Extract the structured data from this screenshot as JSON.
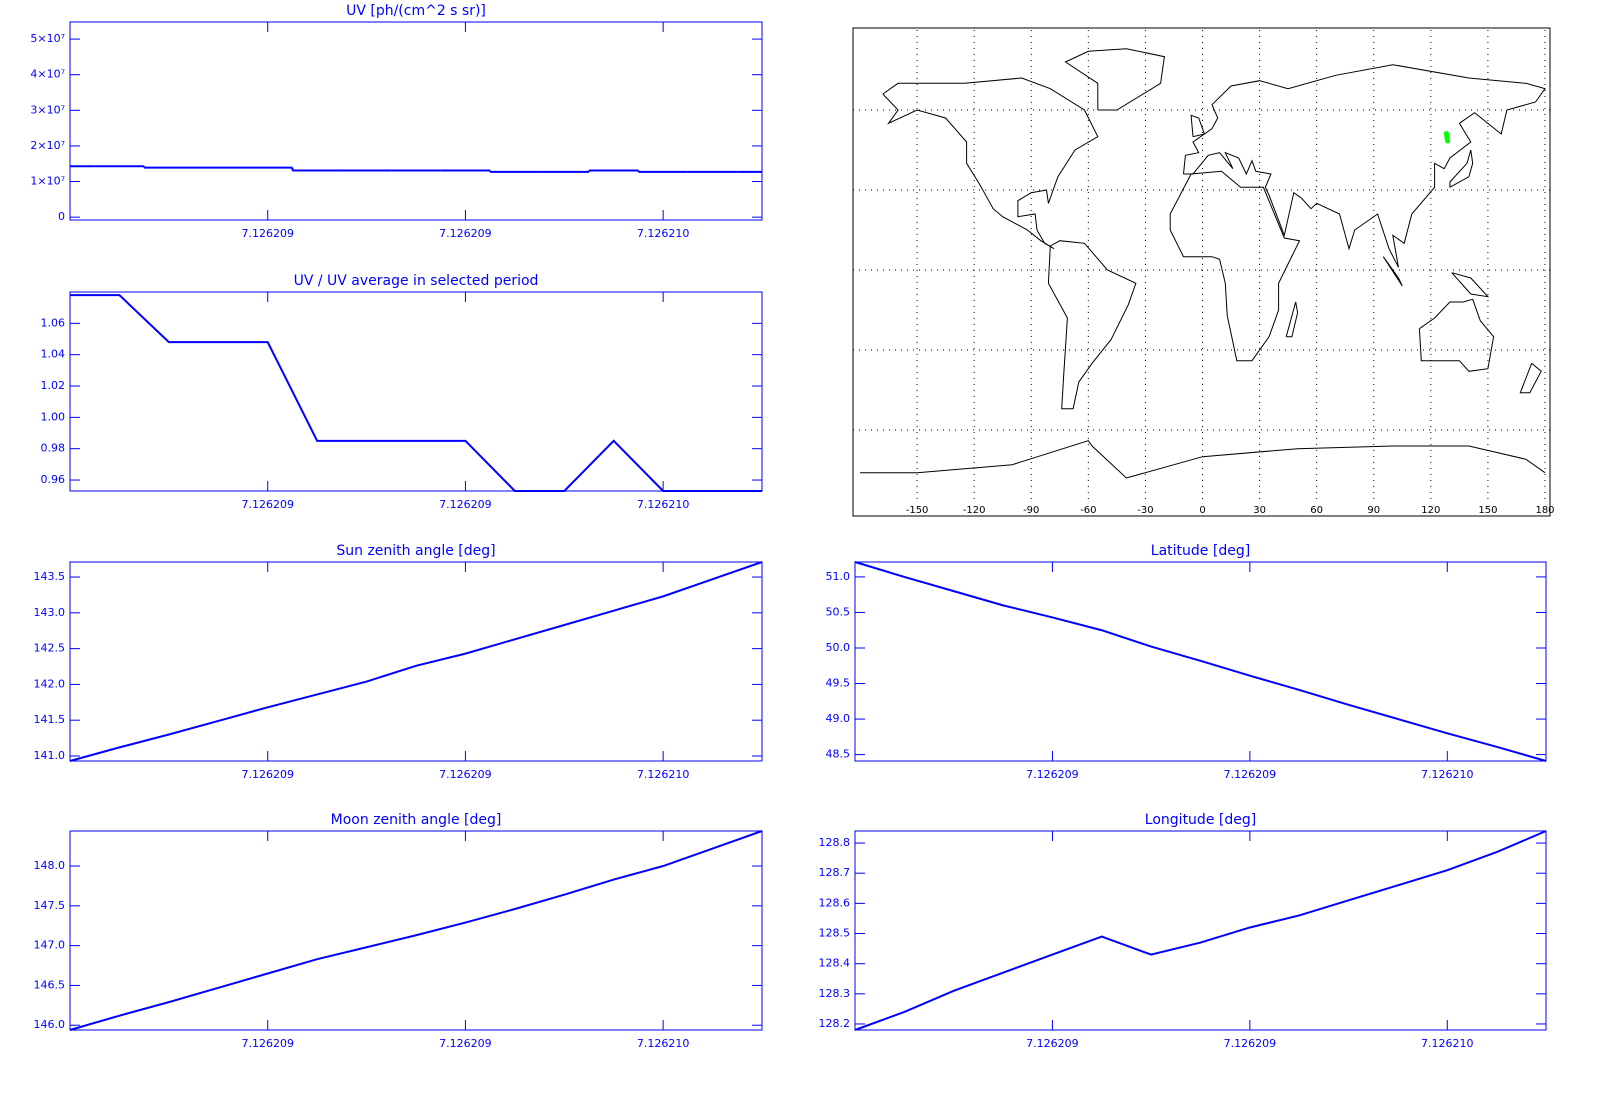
{
  "chart_data": [
    {
      "type": "line",
      "title": "UV [ph/(cm^2 s sr)]",
      "color": "#0000ff",
      "step": true,
      "x": [
        7.1262084,
        7.1262085,
        7.1262086,
        7.1262087,
        7.1262088,
        7.1262089,
        7.126209,
        7.1262091,
        7.1262092,
        7.1262093,
        7.1262094,
        7.1262095,
        7.1262096,
        7.1262097,
        7.1262098
      ],
      "values": [
        14300000,
        14300000,
        13900000,
        13900000,
        13900000,
        13100000,
        13100000,
        13100000,
        13100000,
        12700000,
        12700000,
        13100000,
        12700000,
        12700000,
        12700000
      ],
      "xlim": [
        7.1262084,
        7.1262098
      ],
      "xticks": [
        {
          "value": 7.1262088,
          "label": "7.126209"
        },
        {
          "value": 7.1262092,
          "label": "7.126209"
        },
        {
          "value": 7.1262096,
          "label": "7.126210"
        }
      ],
      "ylim": [
        -800000,
        54800000
      ],
      "yticks": [
        0,
        {
          "value": 10000000,
          "label": "1×10⁷"
        },
        {
          "value": 20000000,
          "label": "2×10⁷"
        },
        {
          "value": 30000000,
          "label": "3×10⁷"
        },
        {
          "value": 40000000,
          "label": "4×10⁷"
        },
        {
          "value": 50000000,
          "label": "5×10⁷"
        }
      ]
    },
    {
      "type": "line",
      "title": "UV / UV average in selected period",
      "color": "#0000ff",
      "x": [
        7.1262084,
        7.1262085,
        7.1262086,
        7.1262087,
        7.1262088,
        7.1262089,
        7.126209,
        7.1262091,
        7.1262092,
        7.1262093,
        7.1262094,
        7.1262095,
        7.1262096,
        7.1262097,
        7.1262098
      ],
      "values": [
        1.078,
        1.078,
        1.048,
        1.048,
        1.048,
        0.985,
        0.985,
        0.985,
        0.985,
        0.953,
        0.953,
        0.985,
        0.953,
        0.953,
        0.953
      ],
      "xlim": [
        7.1262084,
        7.1262098
      ],
      "xticks": [
        {
          "value": 7.1262088,
          "label": "7.126209"
        },
        {
          "value": 7.1262092,
          "label": "7.126209"
        },
        {
          "value": 7.1262096,
          "label": "7.126210"
        }
      ],
      "ylim": [
        0.953,
        1.08
      ],
      "yticks": [
        0.96,
        0.98,
        {
          "value": 1,
          "label": "1.00"
        },
        1.02,
        1.04,
        1.06
      ]
    },
    {
      "type": "map",
      "track_color": "#00ff00",
      "xlim": [
        -180,
        180
      ],
      "xticks": [
        -150,
        -120,
        -90,
        -60,
        -30,
        0,
        30,
        60,
        90,
        120,
        150,
        180
      ],
      "ylim": [
        -90,
        90
      ],
      "yticks": [
        -60,
        -30,
        0,
        30,
        60
      ]
    },
    {
      "type": "line",
      "title": "Sun zenith angle [deg]",
      "color": "#0000ff",
      "x": [
        7.1262084,
        7.1262085,
        7.1262086,
        7.1262087,
        7.1262088,
        7.1262089,
        7.126209,
        7.1262091,
        7.1262092,
        7.1262093,
        7.1262094,
        7.1262095,
        7.1262096,
        7.1262097,
        7.1262098
      ],
      "values": [
        140.93,
        141.12,
        141.3,
        141.49,
        141.68,
        141.86,
        142.04,
        142.26,
        142.43,
        142.63,
        142.83,
        143.03,
        143.23,
        143.47,
        143.71
      ],
      "xlim": [
        7.1262084,
        7.1262098
      ],
      "xticks": [
        {
          "value": 7.1262088,
          "label": "7.126209"
        },
        {
          "value": 7.1262092,
          "label": "7.126209"
        },
        {
          "value": 7.1262096,
          "label": "7.126210"
        }
      ],
      "ylim": [
        140.93,
        143.71
      ],
      "yticks": [
        {
          "value": 141,
          "label": "141.0"
        },
        141.5,
        {
          "value": 142,
          "label": "142.0"
        },
        142.5,
        {
          "value": 143,
          "label": "143.0"
        },
        143.5
      ]
    },
    {
      "type": "line",
      "title": "Latitude [deg]",
      "color": "#0000ff",
      "x": [
        7.1262084,
        7.1262085,
        7.1262086,
        7.1262087,
        7.1262088,
        7.1262089,
        7.126209,
        7.1262091,
        7.1262092,
        7.1262093,
        7.1262094,
        7.1262095,
        7.1262096,
        7.1262097,
        7.1262098
      ],
      "values": [
        51.21,
        51.0,
        50.8,
        50.6,
        50.43,
        50.25,
        50.02,
        49.82,
        49.61,
        49.41,
        49.2,
        49.0,
        48.8,
        48.61,
        48.41
      ],
      "xlim": [
        7.1262084,
        7.1262098
      ],
      "xticks": [
        {
          "value": 7.1262088,
          "label": "7.126209"
        },
        {
          "value": 7.1262092,
          "label": "7.126209"
        },
        {
          "value": 7.1262096,
          "label": "7.126210"
        }
      ],
      "ylim": [
        48.41,
        51.21
      ],
      "yticks": [
        48.5,
        {
          "value": 49,
          "label": "49.0"
        },
        49.5,
        {
          "value": 50,
          "label": "50.0"
        },
        50.5,
        {
          "value": 51,
          "label": "51.0"
        }
      ]
    },
    {
      "type": "line",
      "title": "Moon zenith angle [deg]",
      "color": "#0000ff",
      "x": [
        7.1262084,
        7.1262085,
        7.1262086,
        7.1262087,
        7.1262088,
        7.1262089,
        7.126209,
        7.1262091,
        7.1262092,
        7.1262093,
        7.1262094,
        7.1262095,
        7.1262096,
        7.1262097,
        7.1262098
      ],
      "values": [
        145.94,
        146.12,
        146.29,
        146.47,
        146.65,
        146.83,
        146.98,
        147.13,
        147.29,
        147.46,
        147.64,
        147.83,
        148.0,
        148.22,
        148.44
      ],
      "xlim": [
        7.1262084,
        7.1262098
      ],
      "xticks": [
        {
          "value": 7.1262088,
          "label": "7.126209"
        },
        {
          "value": 7.1262092,
          "label": "7.126209"
        },
        {
          "value": 7.1262096,
          "label": "7.126210"
        }
      ],
      "ylim": [
        145.94,
        148.44
      ],
      "yticks": [
        {
          "value": 146,
          "label": "146.0"
        },
        146.5,
        {
          "value": 147,
          "label": "147.0"
        },
        147.5,
        {
          "value": 148,
          "label": "148.0"
        }
      ]
    },
    {
      "type": "line",
      "title": "Longitude [deg]",
      "color": "#0000ff",
      "x": [
        7.1262084,
        7.1262085,
        7.1262086,
        7.1262087,
        7.1262088,
        7.1262089,
        7.126209,
        7.1262091,
        7.1262092,
        7.1262093,
        7.1262094,
        7.1262095,
        7.1262096,
        7.1262097,
        7.1262098
      ],
      "values": [
        128.18,
        128.24,
        128.31,
        128.37,
        128.43,
        128.49,
        128.43,
        128.47,
        128.52,
        128.56,
        128.61,
        128.66,
        128.71,
        128.77,
        128.84
      ],
      "xlim": [
        7.1262084,
        7.1262098
      ],
      "xticks": [
        {
          "value": 7.1262088,
          "label": "7.126209"
        },
        {
          "value": 7.1262092,
          "label": "7.126209"
        },
        {
          "value": 7.1262096,
          "label": "7.126210"
        }
      ],
      "ylim": [
        128.18,
        128.84
      ],
      "yticks": [
        128.2,
        128.3,
        128.4,
        128.5,
        128.6,
        128.7,
        128.8
      ]
    }
  ]
}
